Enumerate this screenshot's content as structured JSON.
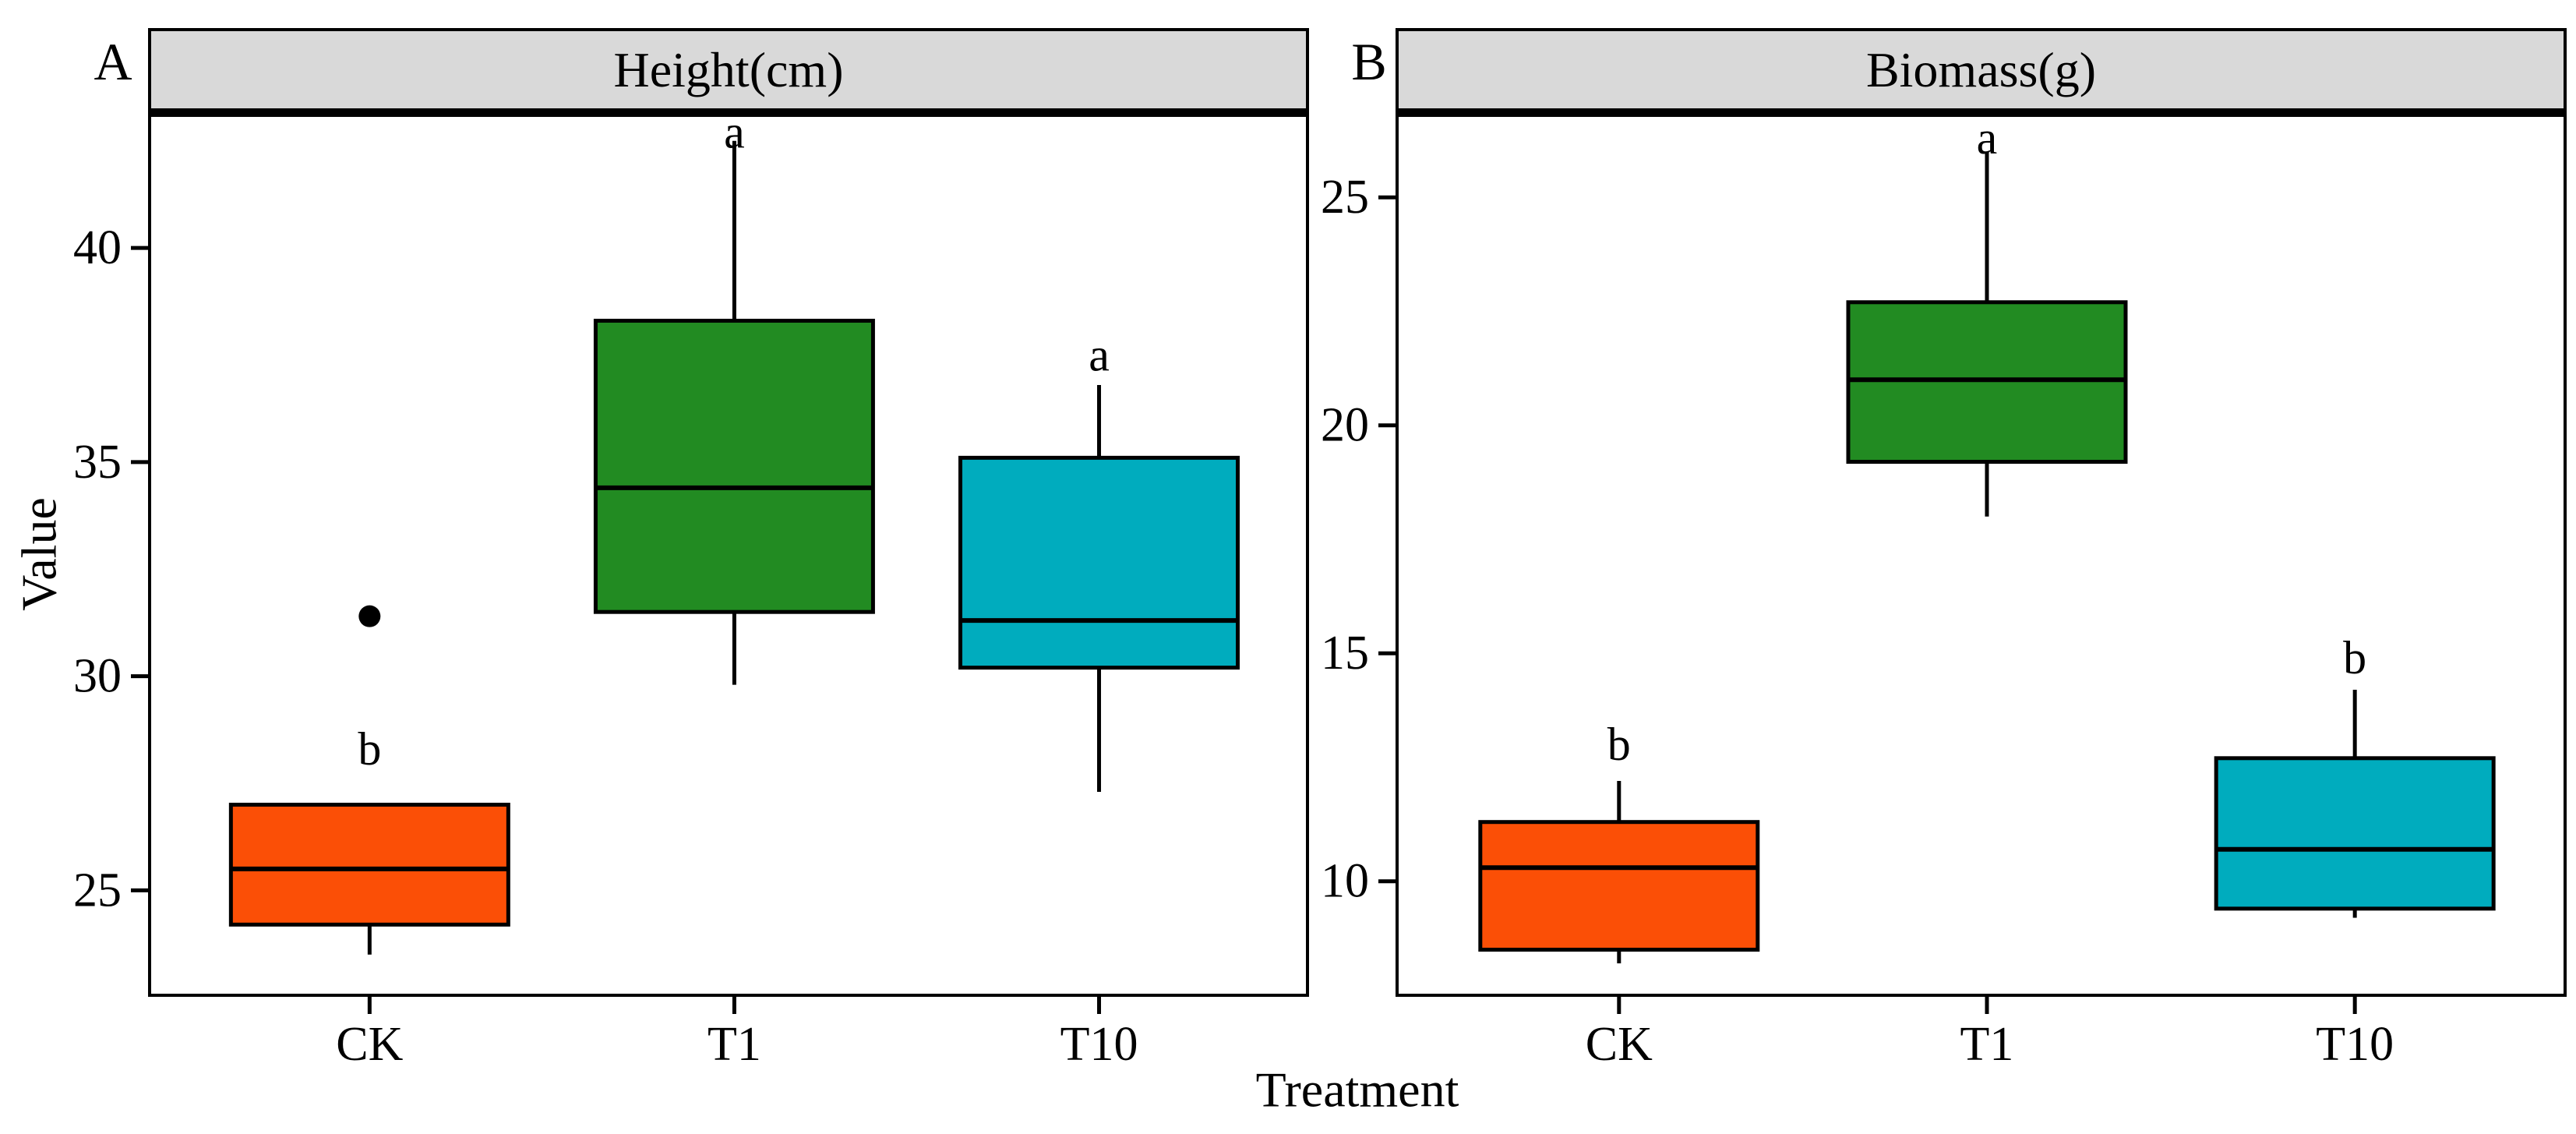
{
  "figure": {
    "xlabel": "Treatment",
    "ylabel": "Value"
  },
  "colors": {
    "strip_background": "#D9D9D9",
    "line": "#000000",
    "panel_background": "#FFFFFF",
    "orange": "#FB4F06",
    "green": "#228B22",
    "cyan": "#00ACBE"
  },
  "chart_data": {
    "type": "boxplot",
    "layout_hint": "two faceted panels side by side, shared x categories, serif publication style, grid off",
    "xlabel": "Treatment",
    "panels": [
      {
        "letter": "A",
        "strip_title": "Height(cm)",
        "ylabel": "Value",
        "ylim": [
          22.55,
          43.15
        ],
        "yticks": [
          25,
          30,
          35,
          40
        ],
        "categories": [
          "CK",
          "T1",
          "T10"
        ],
        "boxes": [
          {
            "category": "CK",
            "color": "orange",
            "whisker_low": 23.5,
            "q1": 24.2,
            "median": 25.5,
            "q3": 27.0,
            "whisker_high": 27.0,
            "outliers": [
              31.4
            ],
            "sig": "b",
            "sig_y": 28.3
          },
          {
            "category": "T1",
            "color": "green",
            "whisker_low": 29.8,
            "q1": 31.5,
            "median": 34.4,
            "q3": 38.3,
            "whisker_high": 42.5,
            "outliers": [],
            "sig": "a",
            "sig_y": 42.7
          },
          {
            "category": "T10",
            "color": "cyan",
            "whisker_low": 27.3,
            "q1": 30.2,
            "median": 31.3,
            "q3": 35.1,
            "whisker_high": 36.8,
            "outliers": [],
            "sig": "a",
            "sig_y": 37.5
          }
        ]
      },
      {
        "letter": "B",
        "strip_title": "Biomass(g)",
        "ylabel": "",
        "ylim": [
          7.5,
          26.85
        ],
        "yticks": [
          10,
          15,
          20,
          25
        ],
        "categories": [
          "CK",
          "T1",
          "T10"
        ],
        "boxes": [
          {
            "category": "CK",
            "color": "orange",
            "whisker_low": 8.2,
            "q1": 8.5,
            "median": 10.3,
            "q3": 11.3,
            "whisker_high": 12.2,
            "outliers": [],
            "sig": "b",
            "sig_y": 13.0
          },
          {
            "category": "T1",
            "color": "green",
            "whisker_low": 18.0,
            "q1": 19.2,
            "median": 21.0,
            "q3": 22.7,
            "whisker_high": 26.0,
            "outliers": [],
            "sig": "a",
            "sig_y": 26.3
          },
          {
            "category": "T10",
            "color": "cyan",
            "whisker_low": 9.2,
            "q1": 9.4,
            "median": 10.7,
            "q3": 12.7,
            "whisker_high": 14.2,
            "outliers": [],
            "sig": "b",
            "sig_y": 14.9
          }
        ]
      }
    ]
  }
}
